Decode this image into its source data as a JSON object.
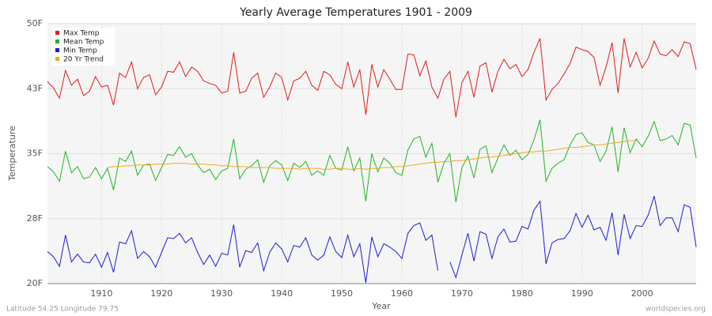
{
  "chart_data": {
    "type": "line",
    "title": "Yearly Average Temperatures 1901 - 2009",
    "xlabel": "Year",
    "ylabel": "Temperature",
    "footer_left": "Latitude 54.25 Longitude 79.75",
    "footer_right": "worldspecies.org",
    "legend": "top-left",
    "grid": true,
    "xlim": [
      1901,
      2009
    ],
    "xticks": [
      1910,
      1920,
      1930,
      1940,
      1950,
      1960,
      1970,
      1980,
      1990,
      2000
    ],
    "ylim": [
      20,
      50
    ],
    "yticks": [
      {
        "value": 20,
        "label": "20F"
      },
      {
        "value": 27.5,
        "label": "28F"
      },
      {
        "value": 35,
        "label": "35F"
      },
      {
        "value": 42.5,
        "label": "43F"
      },
      {
        "value": 50,
        "label": "50F"
      }
    ],
    "x": [
      1901,
      1902,
      1903,
      1904,
      1905,
      1906,
      1907,
      1908,
      1909,
      1910,
      1911,
      1912,
      1913,
      1914,
      1915,
      1916,
      1917,
      1918,
      1919,
      1920,
      1921,
      1922,
      1923,
      1924,
      1925,
      1926,
      1927,
      1928,
      1929,
      1930,
      1931,
      1932,
      1933,
      1934,
      1935,
      1936,
      1937,
      1938,
      1939,
      1940,
      1941,
      1942,
      1943,
      1944,
      1945,
      1946,
      1947,
      1948,
      1949,
      1950,
      1951,
      1952,
      1953,
      1954,
      1955,
      1956,
      1957,
      1958,
      1959,
      1960,
      1961,
      1962,
      1963,
      1964,
      1965,
      1966,
      1967,
      1968,
      1969,
      1970,
      1971,
      1972,
      1973,
      1974,
      1975,
      1976,
      1977,
      1978,
      1979,
      1980,
      1981,
      1982,
      1983,
      1984,
      1985,
      1986,
      1987,
      1988,
      1989,
      1990,
      1991,
      1992,
      1993,
      1994,
      1995,
      1996,
      1997,
      1998,
      1999,
      2000,
      2001,
      2002,
      2003,
      2004,
      2005,
      2006,
      2007,
      2008,
      2009
    ],
    "series": [
      {
        "name": "Max Temp",
        "color": "#e31a1c",
        "values": [
          43.3,
          42.6,
          41.4,
          44.6,
          42.9,
          43.6,
          41.7,
          42.2,
          43.9,
          42.7,
          42.9,
          40.6,
          44.3,
          43.8,
          45.6,
          42.5,
          43.8,
          44.1,
          41.8,
          42.7,
          44.5,
          44.4,
          45.6,
          43.9,
          45.0,
          44.5,
          43.4,
          43.1,
          42.9,
          42.0,
          42.2,
          46.7,
          42.0,
          42.2,
          43.7,
          44.3,
          41.5,
          42.7,
          44.3,
          43.8,
          41.2,
          43.4,
          43.7,
          44.5,
          42.9,
          42.3,
          44.5,
          44.1,
          43.0,
          42.5,
          45.6,
          42.7,
          44.7,
          39.5,
          45.3,
          42.7,
          44.7,
          43.6,
          42.4,
          42.4,
          46.5,
          46.4,
          44.0,
          45.7,
          42.7,
          41.4,
          43.6,
          44.5,
          39.2,
          43.2,
          44.5,
          41.5,
          45.1,
          45.5,
          42.1,
          44.5,
          45.9,
          44.8,
          45.3,
          43.9,
          44.7,
          46.7,
          48.3,
          41.2,
          42.4,
          43.1,
          44.2,
          45.4,
          47.3,
          47.0,
          46.8,
          46.1,
          42.9,
          45.0,
          47.8,
          42.0,
          48.3,
          45.0,
          46.7,
          44.9,
          46.0,
          48.0,
          46.5,
          46.3,
          47.0,
          46.2,
          47.9,
          47.7,
          44.7
        ]
      },
      {
        "name": "Mean Temp",
        "color": "#22b522",
        "values": [
          33.5,
          32.9,
          31.8,
          35.3,
          32.8,
          33.5,
          32.1,
          32.3,
          33.4,
          32.1,
          33.3,
          30.8,
          34.5,
          34.1,
          35.3,
          32.5,
          33.7,
          33.8,
          31.9,
          33.4,
          34.9,
          34.8,
          35.8,
          34.6,
          35.0,
          33.7,
          32.8,
          33.2,
          32.0,
          33.0,
          33.3,
          36.7,
          32.1,
          33.2,
          33.6,
          34.3,
          31.7,
          33.6,
          34.2,
          33.7,
          31.9,
          33.9,
          33.4,
          34.1,
          32.5,
          33.0,
          32.5,
          34.8,
          33.3,
          33.1,
          35.8,
          33.0,
          34.5,
          29.5,
          35.0,
          32.9,
          34.5,
          33.9,
          32.8,
          32.5,
          35.4,
          36.7,
          37.0,
          34.6,
          36.2,
          31.7,
          33.9,
          35.0,
          29.4,
          33.4,
          34.7,
          32.2,
          35.5,
          35.9,
          32.8,
          34.5,
          36.0,
          34.8,
          35.4,
          34.3,
          34.9,
          36.6,
          38.9,
          31.8,
          33.3,
          33.9,
          34.3,
          36.0,
          37.2,
          37.4,
          36.3,
          36.0,
          34.1,
          35.3,
          38.1,
          32.9,
          38.0,
          35.1,
          36.7,
          35.8,
          37.0,
          38.7,
          36.5,
          36.7,
          37.1,
          36.0,
          38.5,
          38.3,
          34.5
        ]
      },
      {
        "name": "Min Temp",
        "color": "#1c1cd6",
        "values": [
          23.7,
          23.1,
          22.0,
          25.6,
          22.5,
          23.4,
          22.5,
          22.4,
          23.4,
          21.9,
          23.6,
          21.3,
          24.8,
          24.6,
          26.1,
          22.9,
          23.7,
          23.1,
          21.9,
          23.6,
          25.3,
          25.2,
          25.8,
          24.7,
          25.3,
          23.6,
          22.2,
          23.3,
          22.0,
          23.5,
          23.3,
          26.8,
          21.9,
          23.8,
          23.6,
          24.7,
          21.5,
          23.6,
          24.7,
          24.0,
          22.5,
          24.4,
          24.2,
          25.3,
          23.3,
          22.7,
          23.3,
          25.4,
          23.7,
          23.0,
          25.6,
          23.1,
          24.6,
          20.1,
          25.4,
          23.1,
          24.6,
          24.2,
          23.7,
          22.9,
          25.8,
          26.7,
          27.0,
          25.0,
          25.6,
          21.5,
          null,
          22.5,
          20.7,
          23.3,
          25.8,
          22.6,
          26.0,
          25.7,
          22.9,
          25.4,
          26.3,
          24.8,
          24.9,
          26.6,
          26.3,
          28.5,
          29.5,
          22.3,
          24.7,
          25.1,
          25.2,
          26.1,
          28.1,
          26.5,
          27.9,
          26.2,
          26.5,
          25.0,
          28.2,
          23.3,
          28.0,
          25.2,
          26.7,
          26.6,
          27.9,
          30.1,
          26.7,
          27.6,
          27.6,
          26.0,
          29.1,
          28.8,
          24.2
        ]
      },
      {
        "name": "20 Yr Trend",
        "color": "#f5a623",
        "values": [
          null,
          null,
          null,
          null,
          null,
          null,
          null,
          null,
          null,
          null,
          33.4,
          33.5,
          33.5,
          33.6,
          33.6,
          33.7,
          33.7,
          33.7,
          33.8,
          33.8,
          33.8,
          33.9,
          33.9,
          33.9,
          33.8,
          33.8,
          33.8,
          33.7,
          33.7,
          33.6,
          33.6,
          33.5,
          33.5,
          33.5,
          33.4,
          33.4,
          33.4,
          33.4,
          33.3,
          33.3,
          33.3,
          33.3,
          33.2,
          33.3,
          33.3,
          33.3,
          33.2,
          33.2,
          33.3,
          33.3,
          33.2,
          33.2,
          33.3,
          33.2,
          33.3,
          33.3,
          33.4,
          33.4,
          33.5,
          33.5,
          33.6,
          33.7,
          33.8,
          33.9,
          34.0,
          34.0,
          34.1,
          34.1,
          34.2,
          34.2,
          34.3,
          34.4,
          34.5,
          34.6,
          34.6,
          34.7,
          34.8,
          34.9,
          35.0,
          35.1,
          35.2,
          35.2,
          35.3,
          35.3,
          35.4,
          35.5,
          35.6,
          35.7,
          35.7,
          35.8,
          35.9,
          36.0,
          36.0,
          36.1,
          36.2,
          36.3,
          36.4,
          36.5,
          36.5,
          null,
          null,
          null,
          null,
          null,
          null,
          null,
          null,
          null,
          null
        ]
      }
    ]
  }
}
